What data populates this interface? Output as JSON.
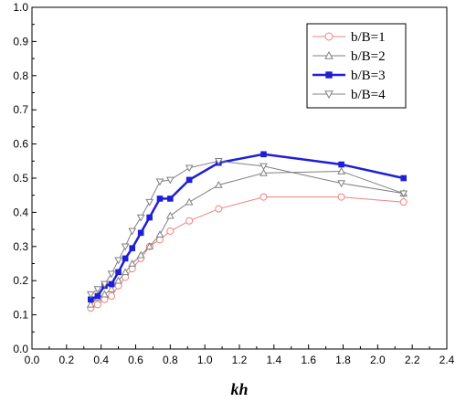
{
  "chart_data": {
    "type": "line",
    "title": "",
    "xlabel": "kh",
    "ylabel": "",
    "xlim": [
      0,
      2.4
    ],
    "ylim": [
      0,
      1.0
    ],
    "xticks": [
      "0.0",
      "0.2",
      "0.4",
      "0.6",
      "0.8",
      "1.0",
      "1.2",
      "1.4",
      "1.6",
      "1.8",
      "2.0",
      "2.2",
      "2.4"
    ],
    "yticks": [
      "0.0",
      "0.1",
      "0.2",
      "0.3",
      "0.4",
      "0.5",
      "0.6",
      "0.7",
      "0.8",
      "0.9",
      "1.0"
    ],
    "grid": false,
    "legend_position": "top-right",
    "series": [
      {
        "name": "b/B=1",
        "color": "#f08080",
        "marker": "circle-open",
        "x": [
          0.34,
          0.38,
          0.42,
          0.46,
          0.5,
          0.54,
          0.58,
          0.63,
          0.68,
          0.74,
          0.8,
          0.91,
          1.08,
          1.34,
          1.79,
          2.15
        ],
        "y": [
          0.12,
          0.13,
          0.145,
          0.155,
          0.185,
          0.21,
          0.235,
          0.265,
          0.3,
          0.32,
          0.345,
          0.375,
          0.41,
          0.445,
          0.445,
          0.43
        ]
      },
      {
        "name": "b/B=2",
        "color": "#808080",
        "marker": "triangle-up-open",
        "x": [
          0.34,
          0.38,
          0.42,
          0.46,
          0.5,
          0.54,
          0.58,
          0.63,
          0.68,
          0.74,
          0.8,
          0.91,
          1.08,
          1.34,
          1.79,
          2.15
        ],
        "y": [
          0.13,
          0.15,
          0.16,
          0.175,
          0.2,
          0.225,
          0.25,
          0.275,
          0.3,
          0.335,
          0.39,
          0.43,
          0.48,
          0.515,
          0.52,
          0.455
        ]
      },
      {
        "name": "b/B=3",
        "color": "#1f1fd6",
        "marker": "square-filled",
        "x": [
          0.34,
          0.38,
          0.42,
          0.46,
          0.5,
          0.54,
          0.58,
          0.63,
          0.68,
          0.74,
          0.8,
          0.91,
          1.08,
          1.34,
          1.79,
          2.15
        ],
        "y": [
          0.145,
          0.155,
          0.185,
          0.19,
          0.225,
          0.265,
          0.295,
          0.34,
          0.385,
          0.44,
          0.44,
          0.495,
          0.545,
          0.57,
          0.54,
          0.5
        ]
      },
      {
        "name": "b/B=4",
        "color": "#808080",
        "marker": "triangle-down-open",
        "x": [
          0.34,
          0.38,
          0.42,
          0.46,
          0.5,
          0.54,
          0.58,
          0.63,
          0.68,
          0.74,
          0.8,
          0.91,
          1.08,
          1.34,
          1.79,
          2.15
        ],
        "y": [
          0.16,
          0.175,
          0.19,
          0.22,
          0.26,
          0.3,
          0.345,
          0.385,
          0.43,
          0.49,
          0.495,
          0.53,
          0.55,
          0.535,
          0.485,
          0.455
        ]
      }
    ]
  }
}
